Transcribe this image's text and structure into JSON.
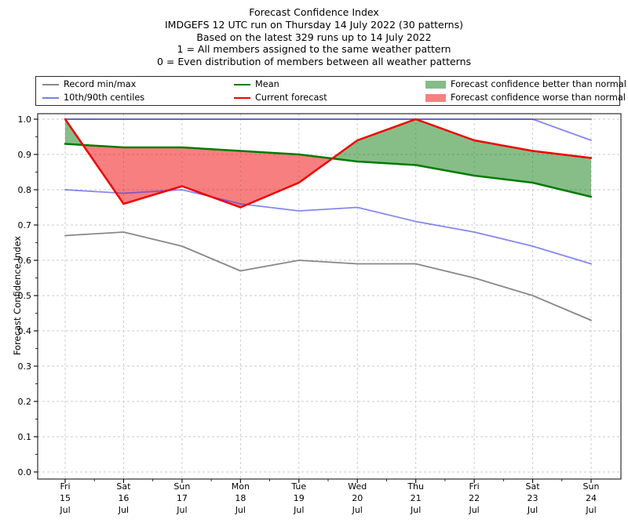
{
  "title_lines": [
    "Forecast Confidence Index",
    "IMDGEFS 12 UTC run on Thursday 14 July 2022 (30 patterns)",
    "Based on the latest 329 runs up to 14 July 2022",
    "1 = All members assigned to the same weather pattern",
    "0 = Even distribution of members between all weather patterns"
  ],
  "legend": {
    "entries": [
      {
        "label": "Record min/max",
        "type": "line",
        "color": "#878787"
      },
      {
        "label": "10th/90th centiles",
        "type": "line",
        "color": "#7b7bf2"
      },
      {
        "label": "Mean",
        "type": "line",
        "color": "#007c00"
      },
      {
        "label": "Current forecast",
        "type": "line",
        "color": "#f10000"
      },
      {
        "label": "Forecast confidence better than normal",
        "type": "patch",
        "color": "#87bb87"
      },
      {
        "label": "Forecast confidence worse than normal",
        "type": "patch",
        "color": "#f88080"
      }
    ]
  },
  "chart_data": {
    "type": "line",
    "title": "Forecast Confidence Index",
    "ylabel": "Forecast Confidence Index",
    "ylim": [
      0.0,
      1.0
    ],
    "ytick_step": 0.1,
    "grid": "dashed",
    "legend_position": "top",
    "categories": [
      {
        "dow": "Fri",
        "day": "15",
        "mon": "Jul"
      },
      {
        "dow": "Sat",
        "day": "16",
        "mon": "Jul"
      },
      {
        "dow": "Sun",
        "day": "17",
        "mon": "Jul"
      },
      {
        "dow": "Mon",
        "day": "18",
        "mon": "Jul"
      },
      {
        "dow": "Tue",
        "day": "19",
        "mon": "Jul"
      },
      {
        "dow": "Wed",
        "day": "20",
        "mon": "Jul"
      },
      {
        "dow": "Thu",
        "day": "21",
        "mon": "Jul"
      },
      {
        "dow": "Fri",
        "day": "22",
        "mon": "Jul"
      },
      {
        "dow": "Sat",
        "day": "23",
        "mon": "Jul"
      },
      {
        "dow": "Sun",
        "day": "24",
        "mon": "Jul"
      }
    ],
    "series": [
      {
        "name": "Record max",
        "color": "#878787",
        "width": 1.8,
        "values": [
          1.0,
          1.0,
          1.0,
          1.0,
          1.0,
          1.0,
          1.0,
          1.0,
          1.0,
          1.0
        ]
      },
      {
        "name": "Record min",
        "color": "#878787",
        "width": 1.8,
        "values": [
          0.67,
          0.68,
          0.64,
          0.57,
          0.6,
          0.59,
          0.59,
          0.55,
          0.5,
          0.43
        ]
      },
      {
        "name": "90th centile",
        "color": "rgba(60,60,235,0.62)",
        "width": 1.8,
        "values": [
          1.0,
          1.0,
          1.0,
          1.0,
          1.0,
          1.0,
          1.0,
          1.0,
          1.0,
          0.94
        ]
      },
      {
        "name": "10th centile",
        "color": "rgba(60,60,235,0.62)",
        "width": 1.8,
        "values": [
          0.8,
          0.79,
          0.8,
          0.76,
          0.74,
          0.75,
          0.71,
          0.68,
          0.64,
          0.59
        ]
      },
      {
        "name": "Mean",
        "color": "#007c00",
        "width": 2.5,
        "values": [
          0.93,
          0.92,
          0.92,
          0.91,
          0.9,
          0.88,
          0.87,
          0.84,
          0.82,
          0.78
        ]
      },
      {
        "name": "Current forecast",
        "color": "#f10000",
        "width": 2.5,
        "values": [
          1.0,
          0.76,
          0.81,
          0.75,
          0.82,
          0.94,
          1.0,
          0.94,
          0.91,
          0.89
        ]
      }
    ],
    "fills": {
      "between": [
        "Current forecast",
        "Mean"
      ],
      "forecast_index": 5,
      "mean_index": 4,
      "better_color": "rgba(0,115,0,0.47)",
      "worse_color": "rgba(240,0,0,0.50)"
    }
  }
}
